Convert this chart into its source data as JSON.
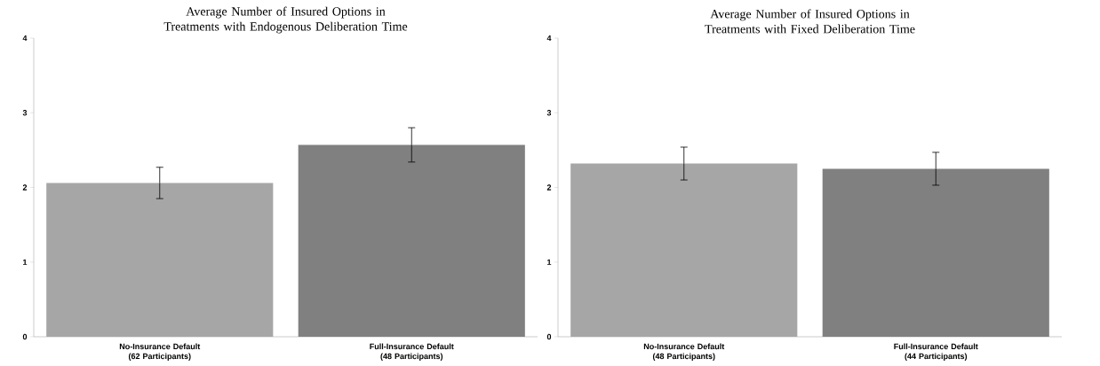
{
  "chart_data": [
    {
      "type": "bar",
      "title": "Average Number of Insured Options in Treatments with Endogenous Deliberation Time",
      "categories": [
        "No-Insurance Default (62 Participants)",
        "Full-Insurance Default (48 Participants)"
      ],
      "values": [
        2.06,
        2.57
      ],
      "errors": [
        0.21,
        0.23
      ],
      "colors": [
        "#a6a6a6",
        "#808080"
      ],
      "ylim": [
        0,
        4
      ],
      "yticks": [
        0,
        1,
        2,
        3,
        4
      ]
    },
    {
      "type": "bar",
      "title": "Average Number of Insured Options in Treatments with Fixed Deliberation Time",
      "categories": [
        "No-Insurance Default (48 Participants)",
        "Full-Insurance Default (44 Participants)"
      ],
      "values": [
        2.32,
        2.25
      ],
      "errors": [
        0.22,
        0.22
      ],
      "colors": [
        "#a6a6a6",
        "#808080"
      ],
      "ylim": [
        0,
        4
      ],
      "yticks": [
        0,
        1,
        2,
        3,
        4
      ]
    }
  ]
}
